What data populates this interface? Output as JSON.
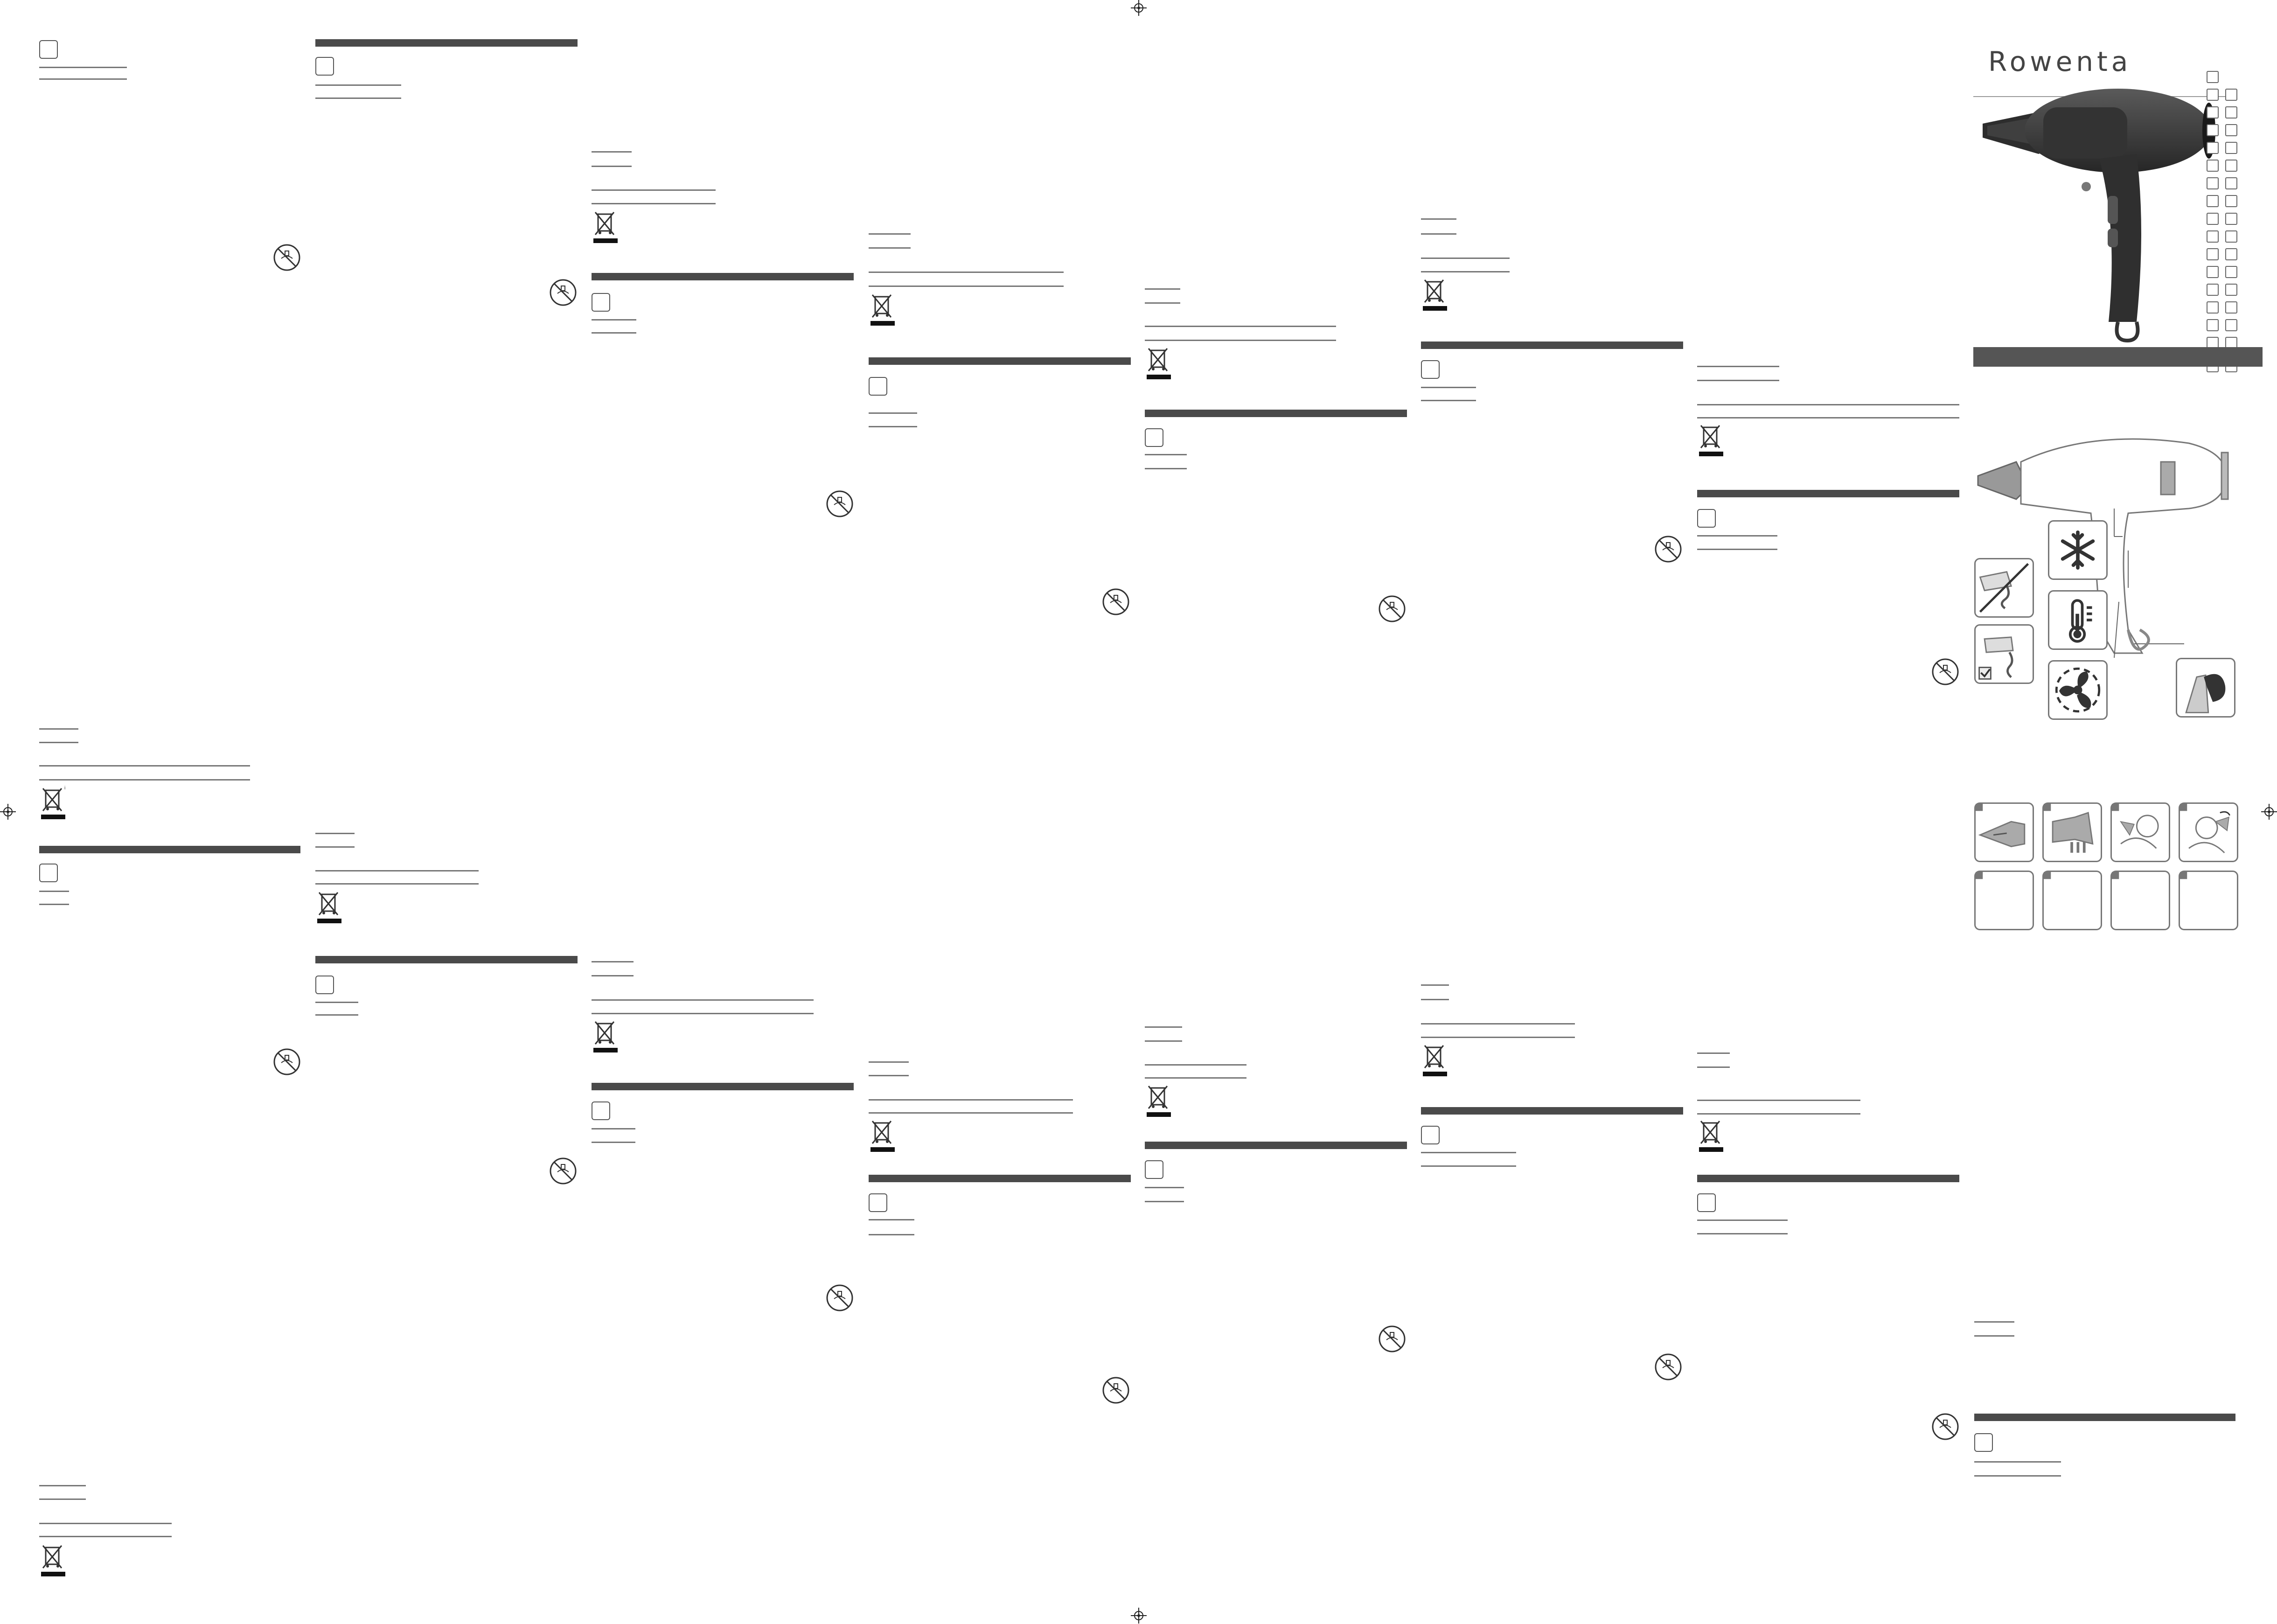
{
  "brand": {
    "name": "Rowenta",
    "color": "#444444"
  },
  "colors": {
    "bar": "#4a4a4a",
    "line": "#777777",
    "icon": "#555555"
  },
  "icons": {
    "weee": "crossed-out-wheeled-bin-icon",
    "no_bath": "no-use-near-water-icon",
    "registration": "registration-cross-icon",
    "cool": "snowflake-icon",
    "heat": "thermometer-icon",
    "speed": "fan-icon",
    "hook": "hanging-loop-icon"
  },
  "diagram": {
    "figure_count": 8,
    "parts_list_count": 17
  }
}
